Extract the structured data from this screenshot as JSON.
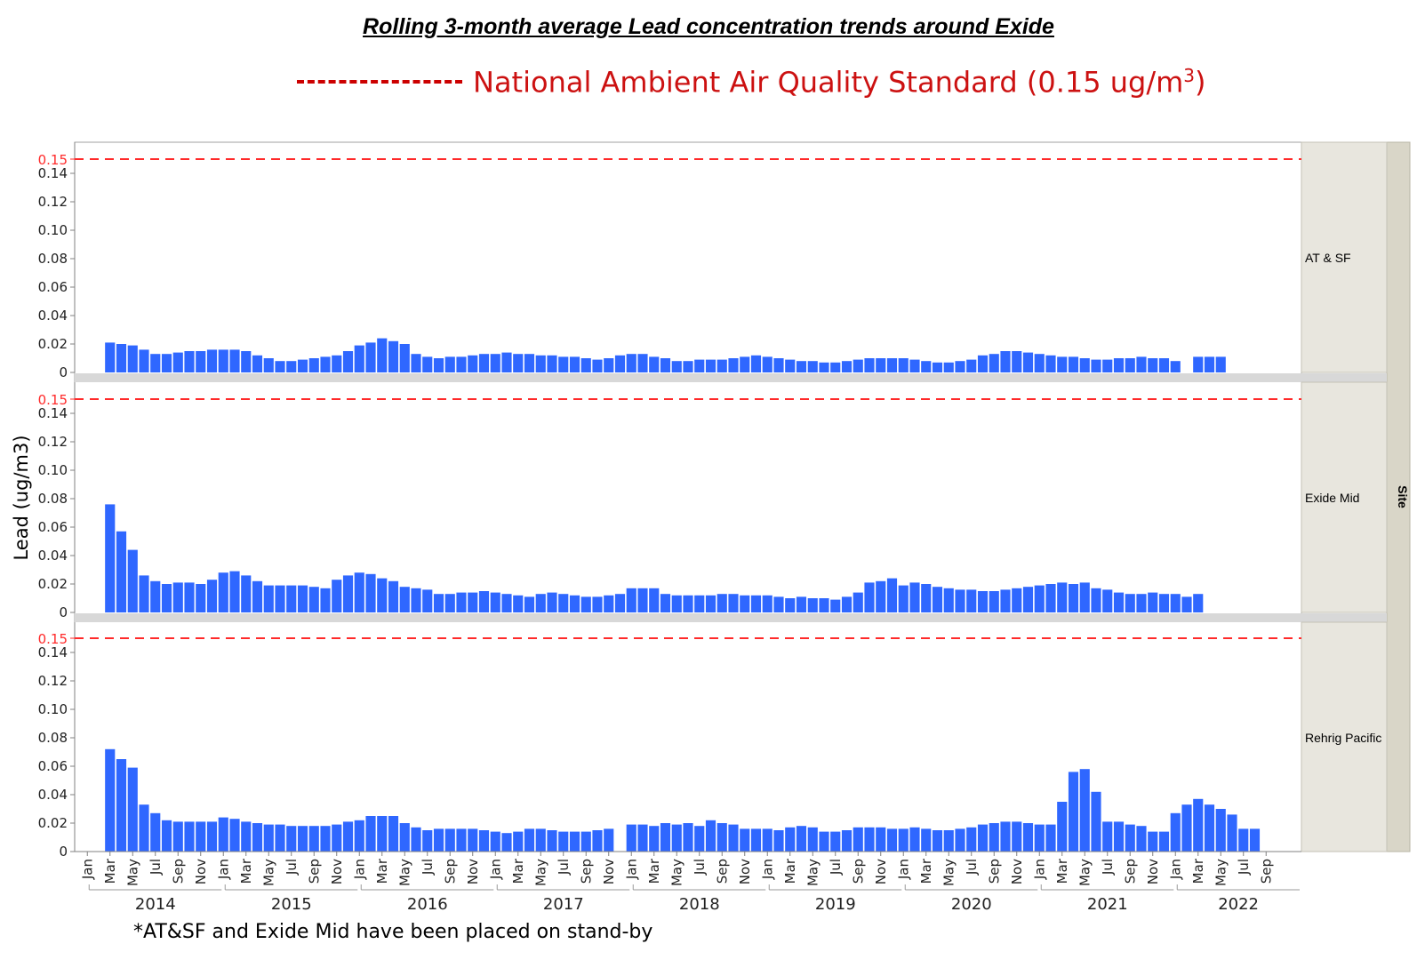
{
  "title": "Rolling 3-month average Lead concentration trends around Exide",
  "legend": {
    "text_main": "National Ambient Air Quality Standard (0.15 ug/m",
    "text_sup": "3",
    "text_end": ")",
    "line_color": "#cc0000"
  },
  "footnote": "*AT&SF and Exide Mid have been placed on stand-by",
  "chart_data": {
    "type": "bar",
    "ylabel": "Lead (ug/m3)",
    "group_label": "Site",
    "ylim": [
      0,
      0.16
    ],
    "yticks": [
      "0",
      "0.02",
      "0.04",
      "0.06",
      "0.08",
      "0.10",
      "0.12",
      "0.14"
    ],
    "ytick_values": [
      0,
      0.02,
      0.04,
      0.06,
      0.08,
      0.1,
      0.12,
      0.14
    ],
    "reference_line": {
      "value": 0.15,
      "label": "0.15",
      "color": "#ff2a2a",
      "style": "dashed"
    },
    "bar_color": "#2f67ff",
    "x_period": {
      "start": "2014-01",
      "end": "2022-09"
    },
    "month_tick_labels": [
      "Jan",
      "Mar",
      "May",
      "Jul",
      "Sep",
      "Nov"
    ],
    "year_labels": [
      "2014",
      "2015",
      "2016",
      "2017",
      "2018",
      "2019",
      "2020",
      "2021",
      "2022"
    ],
    "panels": [
      {
        "name": "AT & SF",
        "values": [
          null,
          0.021,
          0.02,
          0.019,
          0.016,
          0.013,
          0.013,
          0.014,
          0.015,
          0.015,
          0.016,
          0.016,
          0.016,
          0.015,
          0.012,
          0.01,
          0.008,
          0.008,
          0.009,
          0.01,
          0.011,
          0.012,
          0.015,
          0.019,
          0.021,
          0.024,
          0.022,
          0.02,
          0.013,
          0.011,
          0.01,
          0.011,
          0.011,
          0.012,
          0.013,
          0.013,
          0.014,
          0.013,
          0.013,
          0.012,
          0.012,
          0.011,
          0.011,
          0.01,
          0.009,
          0.01,
          0.012,
          0.013,
          0.013,
          0.011,
          0.01,
          0.008,
          0.008,
          0.009,
          0.009,
          0.009,
          0.01,
          0.011,
          0.012,
          0.011,
          0.01,
          0.009,
          0.008,
          0.008,
          0.007,
          0.007,
          0.008,
          0.009,
          0.01,
          0.01,
          0.01,
          0.01,
          0.009,
          0.008,
          0.007,
          0.007,
          0.008,
          0.009,
          0.012,
          0.013,
          0.015,
          0.015,
          0.014,
          0.013,
          0.012,
          0.011,
          0.011,
          0.01,
          0.009,
          0.009,
          0.01,
          0.01,
          0.011,
          0.01,
          0.01,
          0.008,
          null,
          0.011,
          0.011,
          0.011,
          null,
          null,
          null,
          null
        ]
      },
      {
        "name": "Exide Mid",
        "values": [
          null,
          0.076,
          0.057,
          0.044,
          0.026,
          0.022,
          0.02,
          0.021,
          0.021,
          0.02,
          0.023,
          0.028,
          0.029,
          0.026,
          0.022,
          0.019,
          0.019,
          0.019,
          0.019,
          0.018,
          0.017,
          0.023,
          0.026,
          0.028,
          0.027,
          0.024,
          0.022,
          0.018,
          0.017,
          0.016,
          0.013,
          0.013,
          0.014,
          0.014,
          0.015,
          0.014,
          0.013,
          0.012,
          0.011,
          0.013,
          0.014,
          0.013,
          0.012,
          0.011,
          0.011,
          0.012,
          0.013,
          0.017,
          0.017,
          0.017,
          0.013,
          0.012,
          0.012,
          0.012,
          0.012,
          0.013,
          0.013,
          0.012,
          0.012,
          0.012,
          0.011,
          0.01,
          0.011,
          0.01,
          0.01,
          0.009,
          0.011,
          0.014,
          0.021,
          0.022,
          0.024,
          0.019,
          0.021,
          0.02,
          0.018,
          0.017,
          0.016,
          0.016,
          0.015,
          0.015,
          0.016,
          0.017,
          0.018,
          0.019,
          0.02,
          0.021,
          0.02,
          0.021,
          0.017,
          0.016,
          0.014,
          0.013,
          0.013,
          0.014,
          0.013,
          0.013,
          0.011,
          0.013,
          null,
          null,
          null,
          null,
          null,
          null,
          null,
          null
        ]
      },
      {
        "name": "Rehrig Pacific",
        "values": [
          null,
          0.072,
          0.065,
          0.059,
          0.033,
          0.027,
          0.022,
          0.021,
          0.021,
          0.021,
          0.021,
          0.024,
          0.023,
          0.021,
          0.02,
          0.019,
          0.019,
          0.018,
          0.018,
          0.018,
          0.018,
          0.019,
          0.021,
          0.022,
          0.025,
          0.025,
          0.025,
          0.02,
          0.017,
          0.015,
          0.016,
          0.016,
          0.016,
          0.016,
          0.015,
          0.014,
          0.013,
          0.014,
          0.016,
          0.016,
          0.015,
          0.014,
          0.014,
          0.014,
          0.015,
          0.016,
          null,
          0.019,
          0.019,
          0.018,
          0.02,
          0.019,
          0.02,
          0.018,
          0.022,
          0.02,
          0.019,
          0.016,
          0.016,
          0.016,
          0.015,
          0.017,
          0.018,
          0.017,
          0.014,
          0.014,
          0.015,
          0.017,
          0.017,
          0.017,
          0.016,
          0.016,
          0.017,
          0.016,
          0.015,
          0.015,
          0.016,
          0.017,
          0.019,
          0.02,
          0.021,
          0.021,
          0.02,
          0.019,
          0.019,
          0.035,
          0.056,
          0.058,
          0.042,
          0.021,
          0.021,
          0.019,
          0.018,
          0.014,
          0.014,
          0.027,
          0.033,
          0.037,
          0.033,
          0.03,
          0.026,
          0.016,
          0.016,
          null
        ]
      }
    ]
  }
}
